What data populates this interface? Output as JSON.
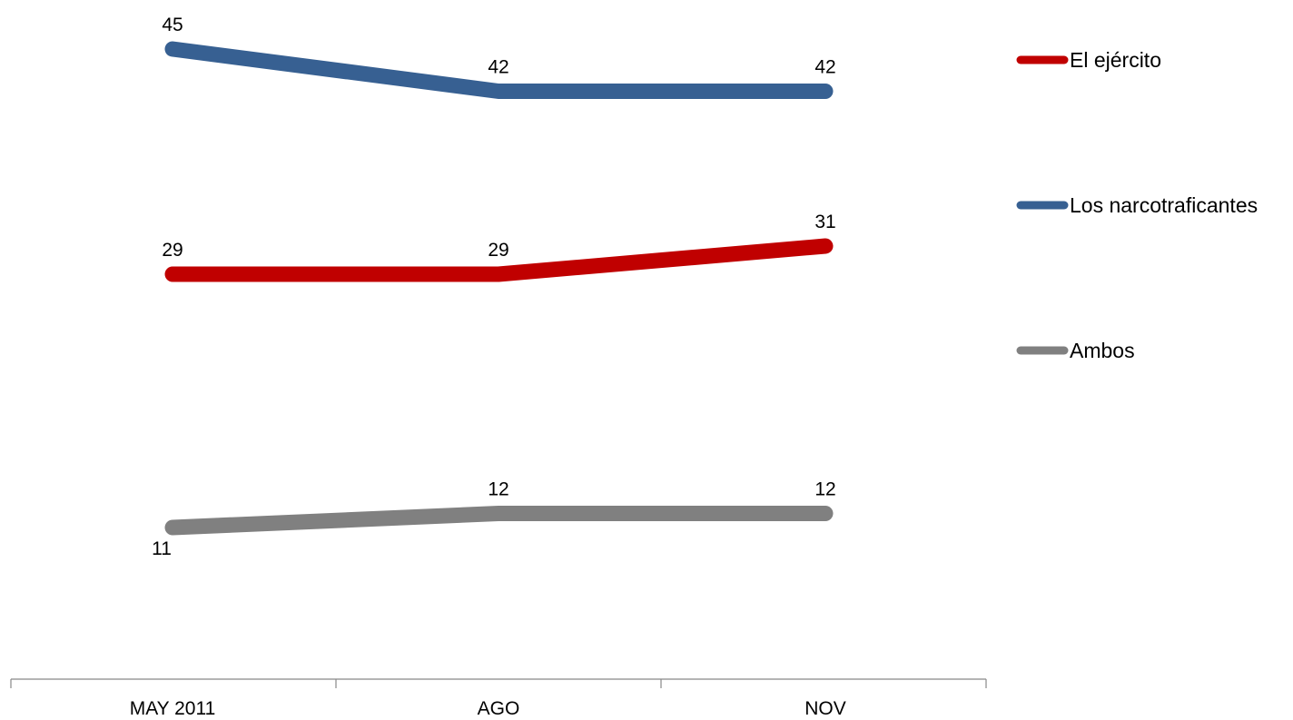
{
  "chart_data": {
    "type": "line",
    "categories": [
      "MAY 2011",
      "AGO",
      "NOV"
    ],
    "series": [
      {
        "name": "El ejército",
        "color": "#c00000",
        "values": [
          29,
          29,
          31
        ]
      },
      {
        "name": "Los narcotraficantes",
        "color": "#376092",
        "values": [
          45,
          42,
          42
        ]
      },
      {
        "name": "Ambos",
        "color": "#808080",
        "values": [
          11,
          12,
          12
        ]
      }
    ],
    "legend_order": [
      0,
      1,
      2
    ],
    "legend_position": "right",
    "grid": false,
    "show_y_axis": false
  }
}
